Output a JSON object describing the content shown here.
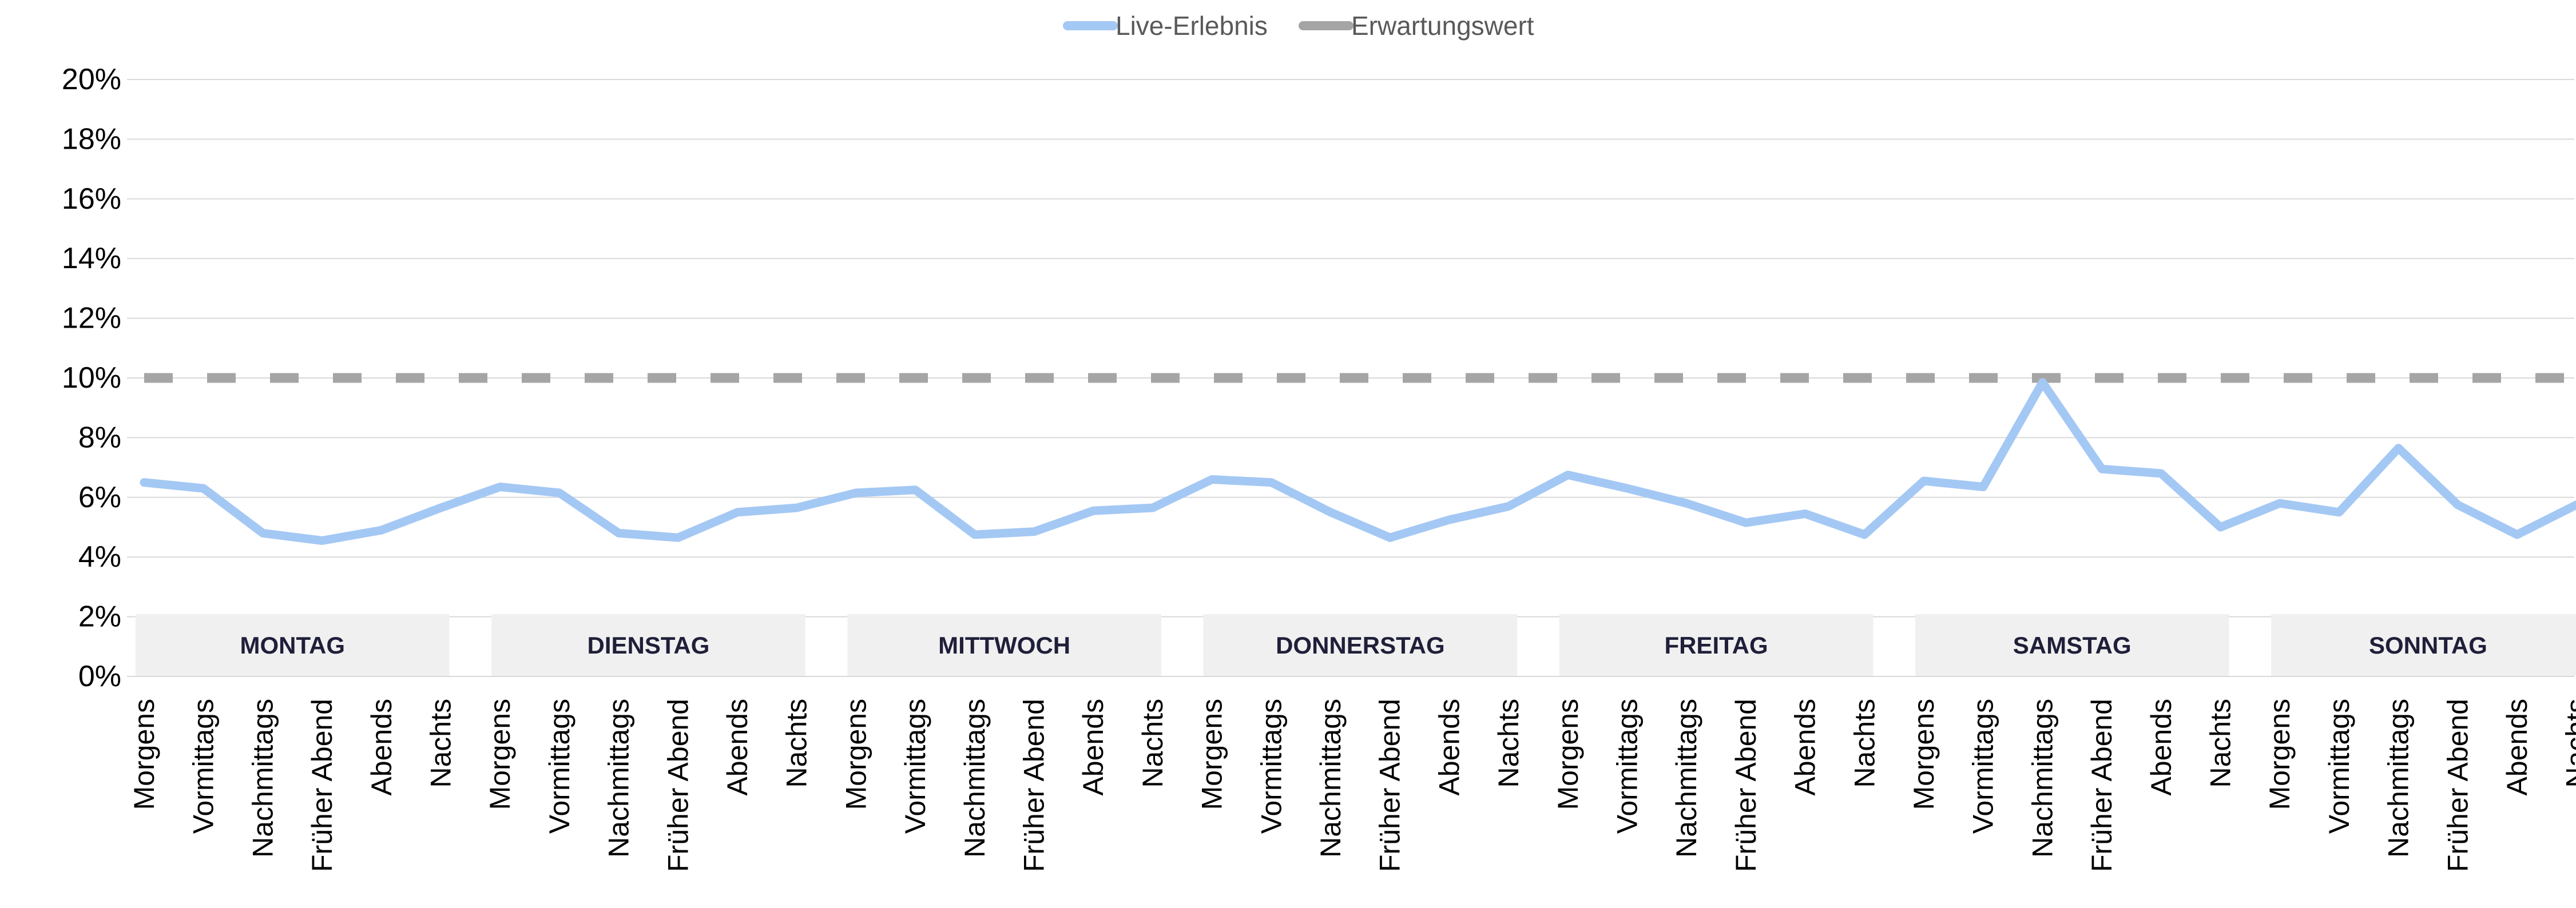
{
  "chart_data": {
    "type": "line",
    "title": "",
    "xlabel": "",
    "ylabel": "",
    "ylim": [
      0,
      0.2
    ],
    "y_ticks": [
      0,
      0.02,
      0.04,
      0.06,
      0.08,
      0.1,
      0.12,
      0.14,
      0.16,
      0.18,
      0.2
    ],
    "y_tick_labels": [
      "0%",
      "2%",
      "4%",
      "6%",
      "8%",
      "10%",
      "12%",
      "14%",
      "16%",
      "18%",
      "20%"
    ],
    "grid": true,
    "legend_position": "top-center",
    "day_groups": [
      "MONTAG",
      "DIENSTAG",
      "MITTWOCH",
      "DONNERSTAG",
      "FREITAG",
      "SAMSTAG",
      "SONNTAG"
    ],
    "categories": [
      "Morgens",
      "Vormittags",
      "Nachmittags",
      "Früher Abend",
      "Abends",
      "Nachts",
      "Morgens",
      "Vormittags",
      "Nachmittags",
      "Früher Abend",
      "Abends",
      "Nachts",
      "Morgens",
      "Vormittags",
      "Nachmittags",
      "Früher Abend",
      "Abends",
      "Nachts",
      "Morgens",
      "Vormittags",
      "Nachmittags",
      "Früher Abend",
      "Abends",
      "Nachts",
      "Morgens",
      "Vormittags",
      "Nachmittags",
      "Früher Abend",
      "Abends",
      "Nachts",
      "Morgens",
      "Vormittags",
      "Nachmittags",
      "Früher Abend",
      "Abends",
      "Nachts",
      "Morgens",
      "Vormittags",
      "Nachmittags",
      "Früher Abend",
      "Abends",
      "Nachts"
    ],
    "series": [
      {
        "name": "Live-Erlebnis",
        "color": "#a4c8f4",
        "style": "solid",
        "values": [
          0.065,
          0.063,
          0.048,
          0.0455,
          0.049,
          0.0565,
          0.0635,
          0.0615,
          0.048,
          0.0465,
          0.055,
          0.0565,
          0.0615,
          0.0625,
          0.0475,
          0.0485,
          0.0555,
          0.0565,
          0.066,
          0.065,
          0.055,
          0.0465,
          0.0525,
          0.057,
          0.0675,
          0.063,
          0.058,
          0.0515,
          0.0545,
          0.0475,
          0.0655,
          0.0635,
          0.0985,
          0.0695,
          0.068,
          0.05,
          0.058,
          0.055,
          0.0765,
          0.0575,
          0.0475,
          0.0575
        ]
      },
      {
        "name": "Erwartungswert",
        "color": "#a5a5a5",
        "style": "dashed",
        "values": [
          0.1,
          0.1,
          0.1,
          0.1,
          0.1,
          0.1,
          0.1,
          0.1,
          0.1,
          0.1,
          0.1,
          0.1,
          0.1,
          0.1,
          0.1,
          0.1,
          0.1,
          0.1,
          0.1,
          0.1,
          0.1,
          0.1,
          0.1,
          0.1,
          0.1,
          0.1,
          0.1,
          0.1,
          0.1,
          0.1,
          0.1,
          0.1,
          0.1,
          0.1,
          0.1,
          0.1,
          0.1,
          0.1,
          0.1,
          0.1,
          0.1,
          0.1
        ]
      }
    ]
  },
  "colors": {
    "gridline": "#d9d9d9",
    "axis_text": "#000000",
    "day_band": "#f0f0f0",
    "day_label": "#1f1f3a",
    "legend_text": "#595959"
  }
}
